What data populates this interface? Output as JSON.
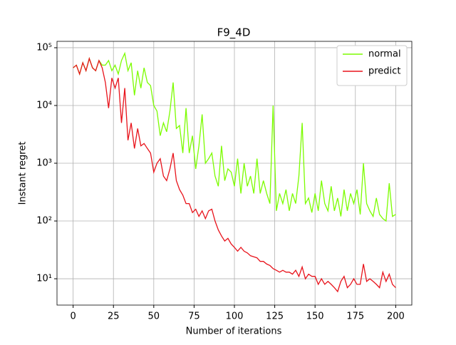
{
  "chart_data": {
    "type": "line",
    "title": "F9_4D",
    "xlabel": "Number of iterations",
    "ylabel": "Instant regret",
    "x": [
      0,
      2,
      4,
      6,
      8,
      10,
      12,
      14,
      16,
      18,
      20,
      22,
      24,
      26,
      28,
      30,
      32,
      34,
      36,
      38,
      40,
      42,
      44,
      46,
      48,
      50,
      52,
      54,
      56,
      58,
      60,
      62,
      64,
      66,
      68,
      70,
      72,
      74,
      76,
      78,
      80,
      82,
      84,
      86,
      88,
      90,
      92,
      94,
      96,
      98,
      100,
      102,
      104,
      106,
      108,
      110,
      112,
      114,
      116,
      118,
      120,
      122,
      124,
      126,
      128,
      130,
      132,
      134,
      136,
      138,
      140,
      142,
      144,
      146,
      148,
      150,
      152,
      154,
      156,
      158,
      160,
      162,
      164,
      166,
      168,
      170,
      172,
      174,
      176,
      178,
      180,
      182,
      184,
      186,
      188,
      190,
      192,
      194,
      196,
      198,
      200
    ],
    "series": [
      {
        "name": "normal",
        "color": "#7cfc00",
        "values": [
          45000,
          50000,
          35000,
          55000,
          40000,
          65000,
          45000,
          40000,
          60000,
          50000,
          50000,
          60000,
          40000,
          50000,
          35000,
          60000,
          80000,
          40000,
          55000,
          15000,
          40000,
          20000,
          45000,
          25000,
          22000,
          10000,
          8000,
          3000,
          5000,
          3500,
          8000,
          25000,
          4000,
          4500,
          1500,
          9000,
          1500,
          3000,
          800,
          2000,
          7000,
          1000,
          1200,
          1500,
          600,
          400,
          2000,
          500,
          800,
          700,
          400,
          1200,
          300,
          1000,
          400,
          600,
          300,
          1200,
          300,
          500,
          300,
          200,
          10000,
          150,
          300,
          200,
          350,
          150,
          300,
          200,
          600,
          5000,
          200,
          250,
          140,
          300,
          150,
          500,
          200,
          150,
          400,
          150,
          250,
          120,
          350,
          150,
          300,
          200,
          350,
          130,
          1000,
          200,
          150,
          120,
          250,
          130,
          110,
          100,
          450,
          120,
          130
        ]
      },
      {
        "name": "predict",
        "color": "#e8131b",
        "values": [
          45000,
          50000,
          35000,
          55000,
          40000,
          65000,
          45000,
          40000,
          60000,
          45000,
          25000,
          9000,
          30000,
          20000,
          30000,
          5000,
          20000,
          2500,
          5000,
          1800,
          4000,
          2000,
          2200,
          1800,
          1500,
          700,
          1000,
          1200,
          600,
          500,
          800,
          1500,
          500,
          350,
          280,
          200,
          200,
          140,
          160,
          120,
          150,
          110,
          150,
          160,
          100,
          70,
          55,
          45,
          50,
          40,
          35,
          30,
          35,
          30,
          28,
          25,
          24,
          23,
          20,
          20,
          18,
          17,
          15,
          14,
          13,
          14,
          13,
          13,
          12,
          14,
          11,
          16,
          10,
          12,
          11,
          11,
          8,
          10,
          8,
          9,
          8,
          7,
          6,
          9,
          11,
          7,
          8,
          10,
          8,
          8,
          18,
          9,
          10,
          9,
          8,
          7,
          13,
          9,
          12,
          8,
          7
        ]
      }
    ],
    "xlim": [
      -10,
      210
    ],
    "xticks": [
      0,
      25,
      50,
      75,
      100,
      125,
      150,
      175,
      200
    ],
    "ylim": [
      3.5,
      129000
    ],
    "ylog": true,
    "yticks": [
      {
        "value": 10,
        "label": "10¹"
      },
      {
        "value": 100,
        "label": "10²"
      },
      {
        "value": 1000,
        "label": "10³"
      },
      {
        "value": 10000,
        "label": "10⁴"
      },
      {
        "value": 100000,
        "label": "10⁵"
      }
    ],
    "grid": true,
    "legend": "upper right"
  }
}
